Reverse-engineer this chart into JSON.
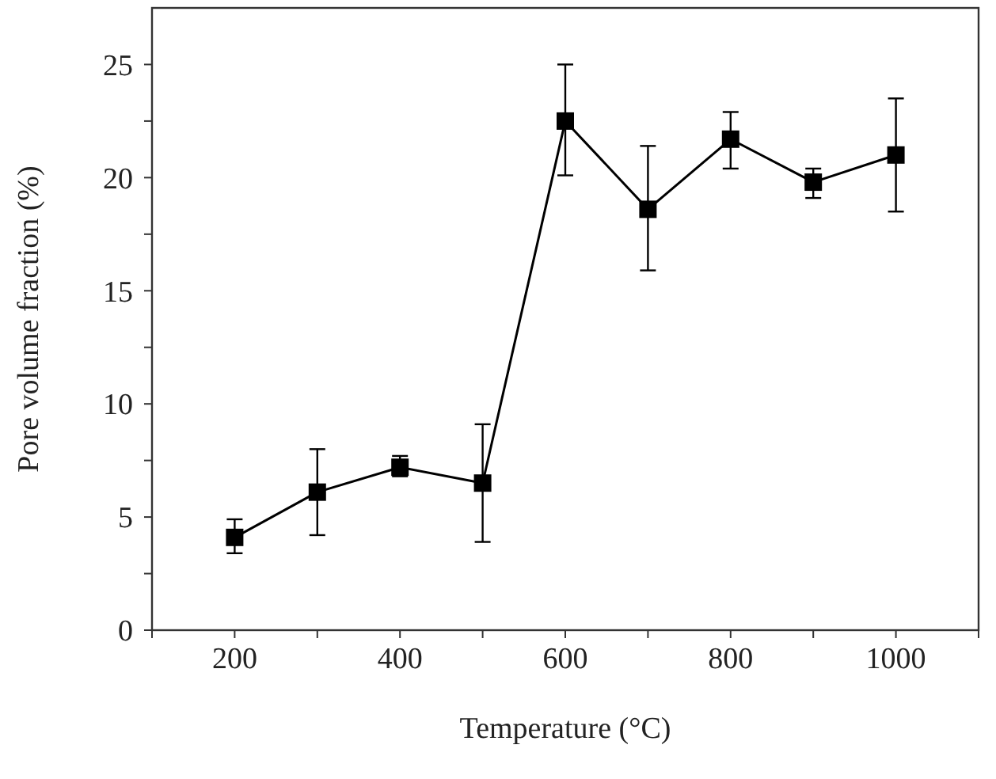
{
  "chart_data": {
    "type": "line",
    "xlabel": "Temperature (°C)",
    "ylabel": "Pore volume fraction (%)",
    "x": [
      200,
      300,
      400,
      500,
      600,
      700,
      800,
      900,
      1000
    ],
    "series": [
      {
        "color": "#000000",
        "values": [
          4.1,
          6.1,
          7.2,
          6.5,
          22.5,
          18.6,
          21.7,
          19.8,
          21.0
        ],
        "errors": [
          [
            3.4,
            4.9
          ],
          [
            4.2,
            8.0
          ],
          [
            6.8,
            7.7
          ],
          [
            3.9,
            9.1
          ],
          [
            20.1,
            25.0
          ],
          [
            15.9,
            21.4
          ],
          [
            20.4,
            22.9
          ],
          [
            19.1,
            20.4
          ],
          [
            18.5,
            23.5
          ]
        ]
      }
    ],
    "xlim": [
      100,
      1100
    ],
    "ylim": [
      0,
      27.5
    ],
    "xticks": [
      {
        "value": 100,
        "label": null
      },
      200,
      {
        "value": 300,
        "label": null
      },
      400,
      {
        "value": 500,
        "label": null
      },
      600,
      {
        "value": 700,
        "label": null
      },
      800,
      {
        "value": 900,
        "label": null
      },
      1000,
      {
        "value": 1100,
        "label": null
      }
    ],
    "yticks": [
      0,
      {
        "value": 2.5,
        "label": null
      },
      5,
      {
        "value": 7.5,
        "label": null
      },
      10,
      {
        "value": 12.5,
        "label": null
      },
      15,
      {
        "value": 17.5,
        "label": null
      },
      20,
      {
        "value": 22.5,
        "label": null
      },
      25
    ],
    "marker": "square",
    "line_style": "solid"
  }
}
